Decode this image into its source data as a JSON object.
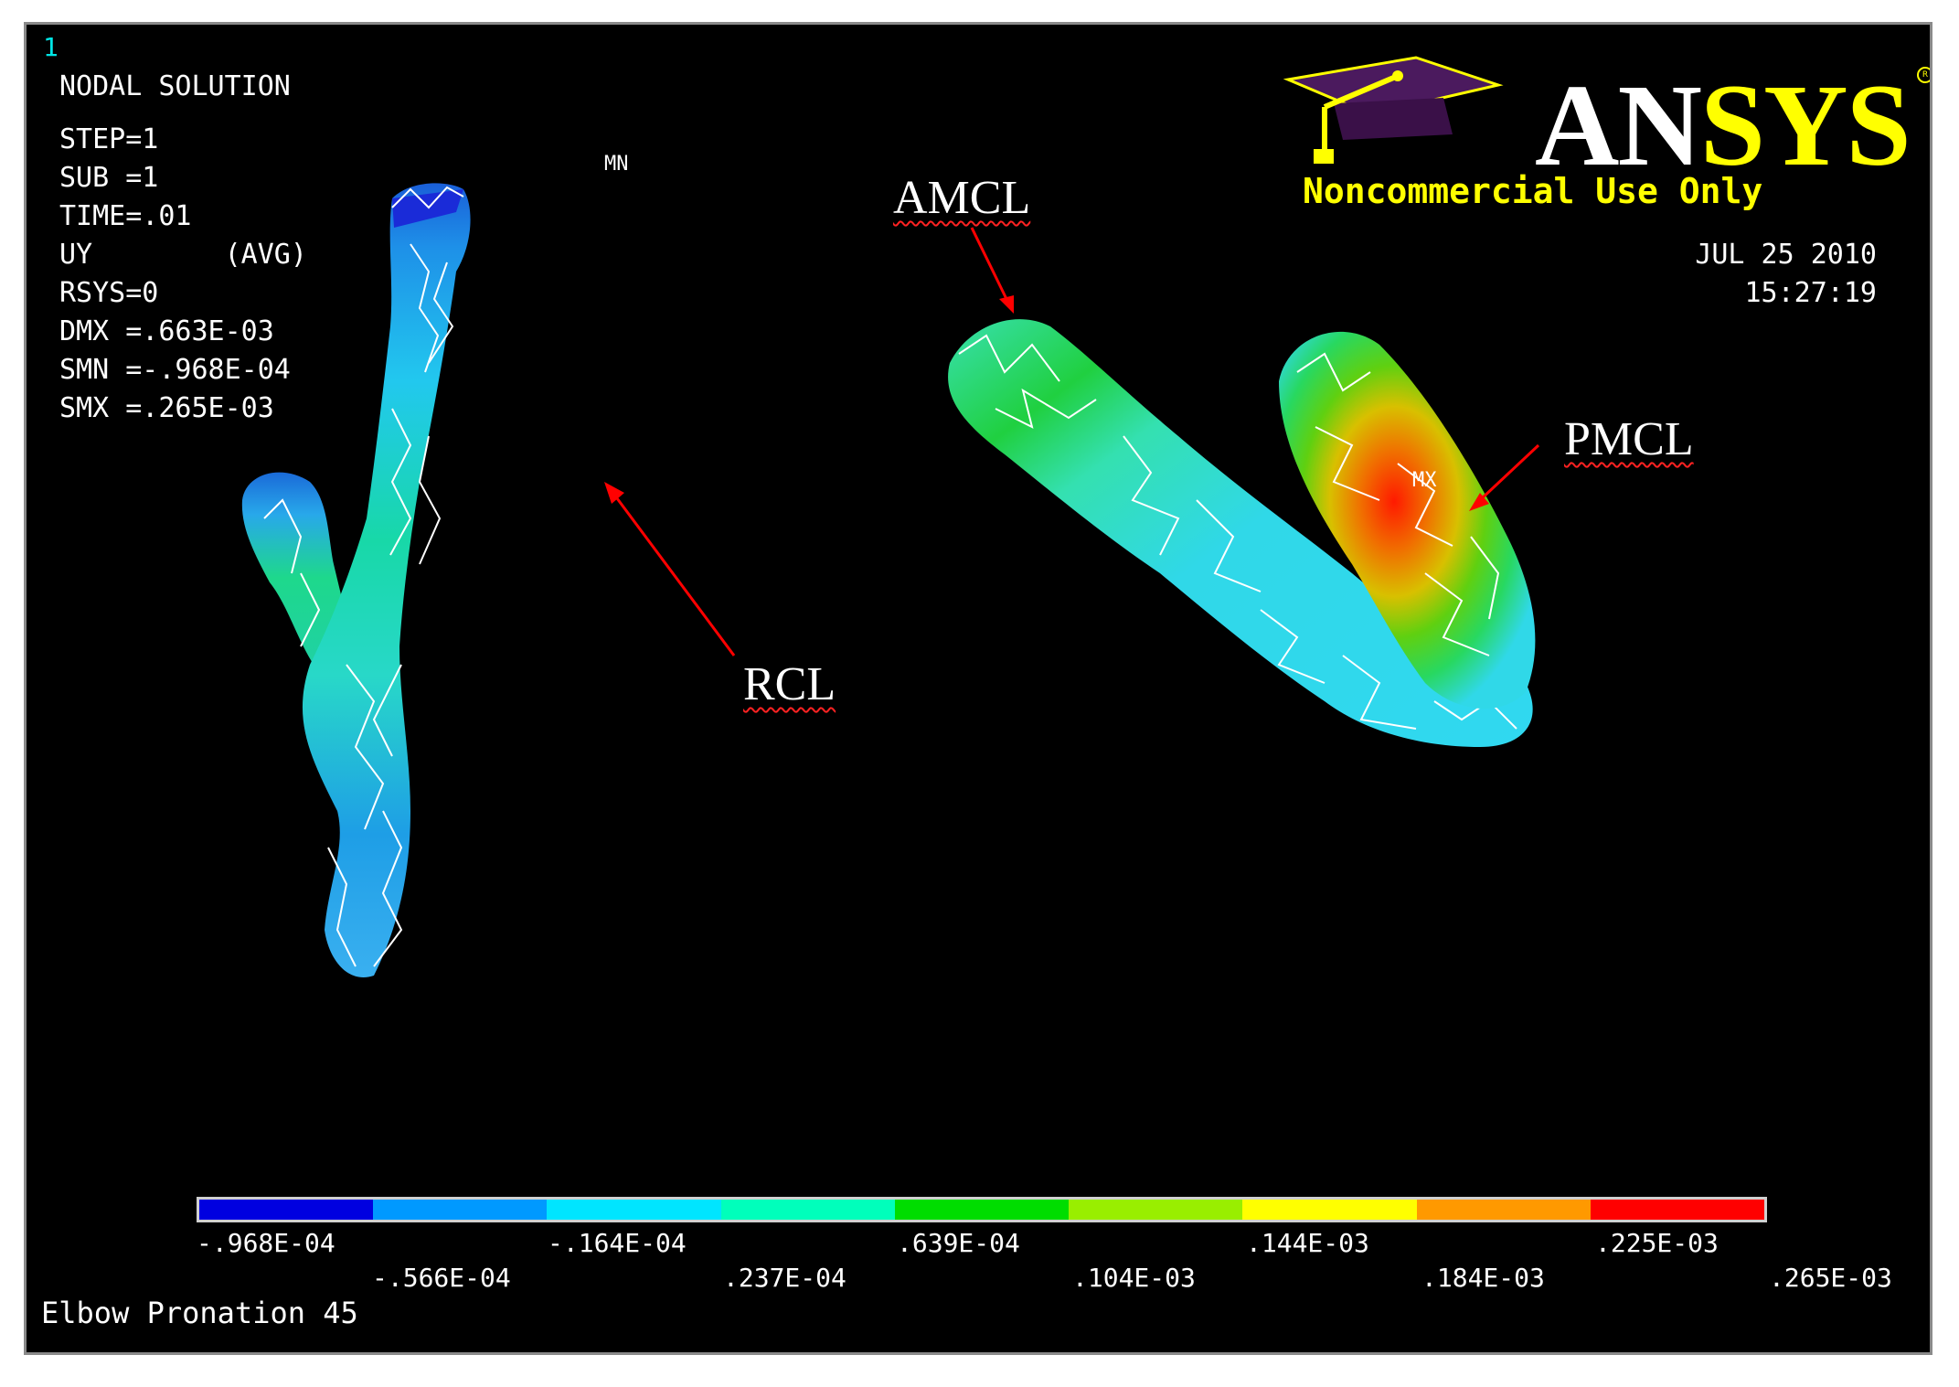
{
  "window_number": "1",
  "plot_info": {
    "title": "NODAL SOLUTION",
    "lines": [
      "STEP=1",
      "SUB =1",
      "TIME=.01",
      "UY        (AVG)",
      "RSYS=0",
      "DMX =.663E-03",
      "SMN =-.968E-04",
      "SMX =.265E-03"
    ]
  },
  "logo": {
    "brand_white": "AN",
    "brand_yellow": "SYS",
    "registered": "R",
    "notice": "Noncommercial Use Only",
    "icon": "graduation-cap-icon"
  },
  "timestamp": {
    "date": "JUL 25 2010",
    "time": "15:27:19"
  },
  "ligament_labels": {
    "rcl": "RCL",
    "amcl": "AMCL",
    "pmcl": "PMCL"
  },
  "markers": {
    "min": "MN",
    "max": "MX"
  },
  "legend": {
    "colors": [
      "#0000e0",
      "#0099ff",
      "#00e5ff",
      "#00ffbb",
      "#00dd00",
      "#99ee00",
      "#ffff00",
      "#ff9900",
      "#ff0000"
    ],
    "ticks_upper": [
      "-.968E-04",
      "-.164E-04",
      ".639E-04",
      ".144E-03",
      ".225E-03"
    ],
    "ticks_lower": [
      "-.566E-04",
      ".237E-04",
      ".104E-03",
      ".184E-03",
      ".265E-03"
    ]
  },
  "caption": "Elbow Pronation 45",
  "colors": {
    "background": "#000000",
    "arrow": "#ff0000",
    "notice": "#ffff00",
    "cap": "#4b1a5e"
  }
}
